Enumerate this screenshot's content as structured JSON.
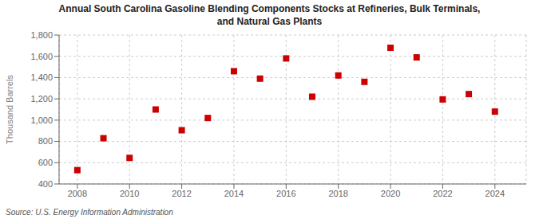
{
  "chart_data": {
    "type": "scatter",
    "title": "Annual South Carolina Gasoline Blending Components Stocks at Refineries, Bulk Terminals,\nand Natural Gas Plants",
    "ylabel": "Thousand Barrels",
    "source": "Source: U.S. Energy Information Administration",
    "x": [
      2008,
      2009,
      2010,
      2011,
      2012,
      2013,
      2014,
      2015,
      2016,
      2017,
      2018,
      2019,
      2020,
      2021,
      2022,
      2023,
      2024
    ],
    "values": [
      530,
      830,
      645,
      1100,
      905,
      1020,
      1460,
      1390,
      1580,
      1220,
      1420,
      1360,
      1680,
      1590,
      1195,
      1245,
      1080
    ],
    "color": "#cc0000",
    "marker": "square",
    "xlim": [
      2007.3,
      2025.2
    ],
    "xticks": [
      2008,
      2010,
      2012,
      2014,
      2016,
      2018,
      2020,
      2022,
      2024
    ],
    "ylim": [
      400,
      1800
    ],
    "yticks": [
      400,
      600,
      800,
      {
        "value": 1000,
        "label": "1,000"
      },
      {
        "value": 1200,
        "label": "1,200"
      },
      {
        "value": 1400,
        "label": "1,400"
      },
      {
        "value": 1600,
        "label": "1,600"
      },
      {
        "value": 1800,
        "label": "1,800"
      }
    ],
    "grid": true
  }
}
